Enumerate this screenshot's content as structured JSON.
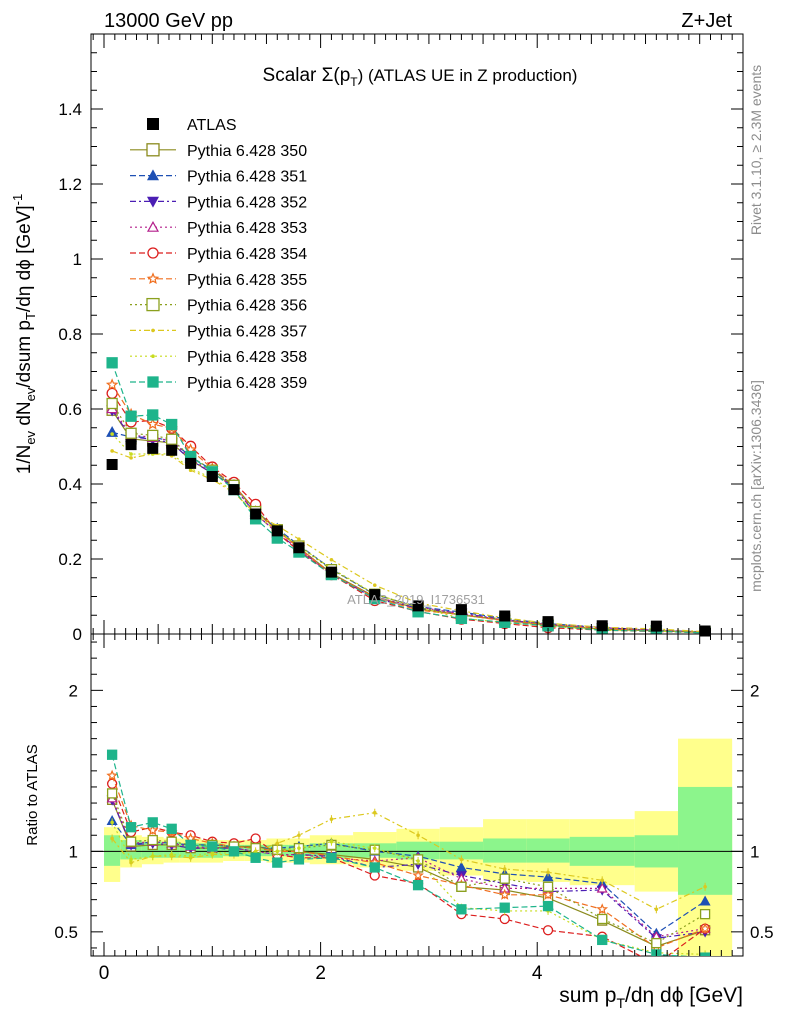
{
  "header": {
    "left": "13000 GeV pp",
    "right": "Z+Jet"
  },
  "side": {
    "rivet": "Rivet 3.1.10, ≥ 2.3M events",
    "mcplots": "mcplots.cern.ch [arXiv:1306.3436]"
  },
  "chart_data": {
    "type": "scatter",
    "title": "Scalar Σ(p_T) (ATLAS UE in Z production)",
    "title_main": "Scalar Σ(p",
    "title_sub": "T",
    "title_tail": ") (ATLAS UE in Z production)",
    "ylabel": "1/N_ev dN_ev/dsum p_T/dη dϕ [GeV]^-1",
    "ylabel_parts": [
      "1/N",
      "ev",
      " dN",
      "ev",
      "/dsum p",
      "T",
      "/dη dϕ  [GeV]",
      "-1"
    ],
    "xlabel": "sum p_T/dη dϕ [GeV]",
    "xlabel_parts": [
      "sum p",
      "T",
      "/dη dϕ [GeV]"
    ],
    "ratio_ylabel": "Ratio to ATLAS",
    "watermark": "ATLAS_2019_I1736531",
    "xlim": [
      -0.12,
      5.9
    ],
    "ylim": [
      0,
      1.6
    ],
    "ratio_ylim": [
      0.35,
      2.35
    ],
    "xticks": [
      "0",
      "2",
      "4"
    ],
    "yticks": [
      "0",
      "0.2",
      "0.4",
      "0.6",
      "0.8",
      "1",
      "1.2",
      "1.4"
    ],
    "ratio_ticks": [
      "0.5",
      "1",
      "2"
    ],
    "x": [
      0.075,
      0.25,
      0.45,
      0.625,
      0.8,
      1.0,
      1.2,
      1.4,
      1.6,
      1.8,
      2.1,
      2.5,
      2.9,
      3.3,
      3.7,
      4.1,
      4.6,
      5.1,
      5.55
    ],
    "bins": [
      [
        0,
        0.15
      ],
      [
        0.15,
        0.35
      ],
      [
        0.35,
        0.55
      ],
      [
        0.55,
        0.7
      ],
      [
        0.7,
        0.9
      ],
      [
        0.9,
        1.1
      ],
      [
        1.1,
        1.3
      ],
      [
        1.3,
        1.5
      ],
      [
        1.5,
        1.7
      ],
      [
        1.7,
        1.9
      ],
      [
        1.9,
        2.3
      ],
      [
        2.3,
        2.7
      ],
      [
        2.7,
        3.1
      ],
      [
        3.1,
        3.5
      ],
      [
        3.5,
        3.9
      ],
      [
        3.9,
        4.3
      ],
      [
        4.3,
        4.9
      ],
      [
        4.9,
        5.3
      ],
      [
        5.3,
        5.8
      ]
    ],
    "atlas": [
      0.452,
      0.505,
      0.495,
      0.49,
      0.455,
      0.42,
      0.385,
      0.32,
      0.275,
      0.23,
      0.165,
      0.105,
      0.075,
      0.065,
      0.048,
      0.033,
      0.022,
      0.021,
      0.008
    ],
    "band_inner": [
      [
        0.91,
        1.1
      ],
      [
        0.95,
        1.07
      ],
      [
        0.96,
        1.06
      ],
      [
        0.96,
        1.06
      ],
      [
        0.96,
        1.05
      ],
      [
        0.96,
        1.05
      ],
      [
        0.97,
        1.04
      ],
      [
        0.97,
        1.04
      ],
      [
        0.97,
        1.04
      ],
      [
        0.97,
        1.04
      ],
      [
        0.96,
        1.05
      ],
      [
        0.96,
        1.05
      ],
      [
        0.95,
        1.06
      ],
      [
        0.95,
        1.06
      ],
      [
        0.93,
        1.08
      ],
      [
        0.93,
        1.08
      ],
      [
        0.91,
        1.09
      ],
      [
        0.9,
        1.1
      ],
      [
        0.73,
        1.4
      ]
    ],
    "band_outer": [
      [
        0.81,
        1.15
      ],
      [
        0.9,
        1.1
      ],
      [
        0.92,
        1.09
      ],
      [
        0.93,
        1.08
      ],
      [
        0.93,
        1.08
      ],
      [
        0.93,
        1.07
      ],
      [
        0.94,
        1.07
      ],
      [
        0.94,
        1.07
      ],
      [
        0.93,
        1.08
      ],
      [
        0.93,
        1.08
      ],
      [
        0.92,
        1.1
      ],
      [
        0.9,
        1.12
      ],
      [
        0.88,
        1.14
      ],
      [
        0.85,
        1.15
      ],
      [
        0.82,
        1.2
      ],
      [
        0.81,
        1.2
      ],
      [
        0.79,
        1.2
      ],
      [
        0.75,
        1.25
      ],
      [
        0.35,
        1.7
      ]
    ],
    "legend_atlas": "ATLAS",
    "series": [
      {
        "name": "Pythia 6.428 350",
        "color": "#8b8b1e",
        "dash": "",
        "marker": "open-square",
        "ratio": [
          1.32,
          1.03,
          1.04,
          1.04,
          1.02,
          1.02,
          1.03,
          1.03,
          1.01,
          1.0,
          0.98,
          0.95,
          0.9,
          0.78,
          0.76,
          0.71,
          0.57,
          0.41,
          0.51
        ]
      },
      {
        "name": "Pythia 6.428 351",
        "color": "#1e50b4",
        "dash": "6,3",
        "marker": "filled-triangle-up",
        "ratio": [
          1.19,
          1.04,
          1.06,
          1.05,
          1.04,
          1.04,
          1.03,
          1.02,
          1.02,
          1.03,
          1.05,
          1.0,
          0.97,
          0.9,
          0.86,
          0.84,
          0.8,
          0.49,
          0.69
        ]
      },
      {
        "name": "Pythia 6.428 352",
        "color": "#4b1eb4",
        "dash": "6,3,2,3",
        "marker": "filled-triangle-down",
        "ratio": [
          1.32,
          1.04,
          1.05,
          1.04,
          1.02,
          1.02,
          1.02,
          1.0,
          0.98,
          0.98,
          0.97,
          0.9,
          0.92,
          0.85,
          0.8,
          0.75,
          0.76,
          0.46,
          0.5
        ]
      },
      {
        "name": "Pythia 6.428 353",
        "color": "#b41e8b",
        "dash": "2,3",
        "marker": "open-triangle-up",
        "ratio": [
          1.33,
          1.05,
          1.06,
          1.05,
          1.03,
          1.02,
          1.02,
          1.0,
          0.98,
          0.98,
          0.96,
          0.94,
          0.96,
          0.83,
          0.77,
          0.77,
          0.77,
          0.47,
          0.52
        ]
      },
      {
        "name": "Pythia 6.428 354",
        "color": "#dc1e1e",
        "dash": "6,3",
        "marker": "open-circle",
        "ratio": [
          1.42,
          1.12,
          1.15,
          1.12,
          1.1,
          1.06,
          1.05,
          1.08,
          0.98,
          0.96,
          0.96,
          0.85,
          0.8,
          0.61,
          0.58,
          0.51,
          0.47,
          0.3,
          0.52
        ]
      },
      {
        "name": "Pythia 6.428 355",
        "color": "#f06e1e",
        "dash": "6,3",
        "marker": "open-star",
        "ratio": [
          1.47,
          1.16,
          1.13,
          1.12,
          1.08,
          1.05,
          1.03,
          1.02,
          1.0,
          1.0,
          0.97,
          0.93,
          0.85,
          0.79,
          0.73,
          0.73,
          0.64,
          0.4,
          0.52
        ]
      },
      {
        "name": "Pythia 6.428 356",
        "color": "#8ba01e",
        "dash": "2,3",
        "marker": "open-square",
        "ratio": [
          1.36,
          1.06,
          1.07,
          1.06,
          1.04,
          1.04,
          1.03,
          1.02,
          1.01,
          1.02,
          1.04,
          1.01,
          0.95,
          0.78,
          0.83,
          0.78,
          0.58,
          0.43,
          0.61
        ]
      },
      {
        "name": "Pythia 6.428 357",
        "color": "#dcc81e",
        "dash": "6,3,2,3",
        "marker": "small-dot",
        "ratio": [
          1.08,
          0.93,
          0.97,
          0.97,
          0.96,
          0.98,
          0.98,
          1.0,
          1.05,
          1.1,
          1.2,
          1.24,
          1.1,
          0.95,
          0.89,
          0.87,
          0.82,
          0.64,
          0.78
        ]
      },
      {
        "name": "Pythia 6.428 358",
        "color": "#c8dc1e",
        "dash": "2,3",
        "marker": "small-dot",
        "ratio": [
          1.18,
          0.95,
          0.97,
          0.98,
          0.97,
          0.99,
          0.99,
          0.99,
          1.0,
          1.02,
          1.06,
          1.02,
          0.94,
          0.65,
          0.63,
          0.63,
          0.45,
          0.37,
          0.36
        ]
      },
      {
        "name": "Pythia 6.428 359",
        "color": "#1eb48b",
        "dash": "6,3",
        "marker": "filled-square",
        "ratio": [
          1.6,
          1.15,
          1.18,
          1.14,
          1.04,
          1.03,
          1.0,
          0.96,
          0.93,
          0.95,
          0.96,
          0.9,
          0.79,
          0.64,
          0.65,
          0.66,
          0.45,
          0.36,
          0.34
        ]
      }
    ]
  }
}
